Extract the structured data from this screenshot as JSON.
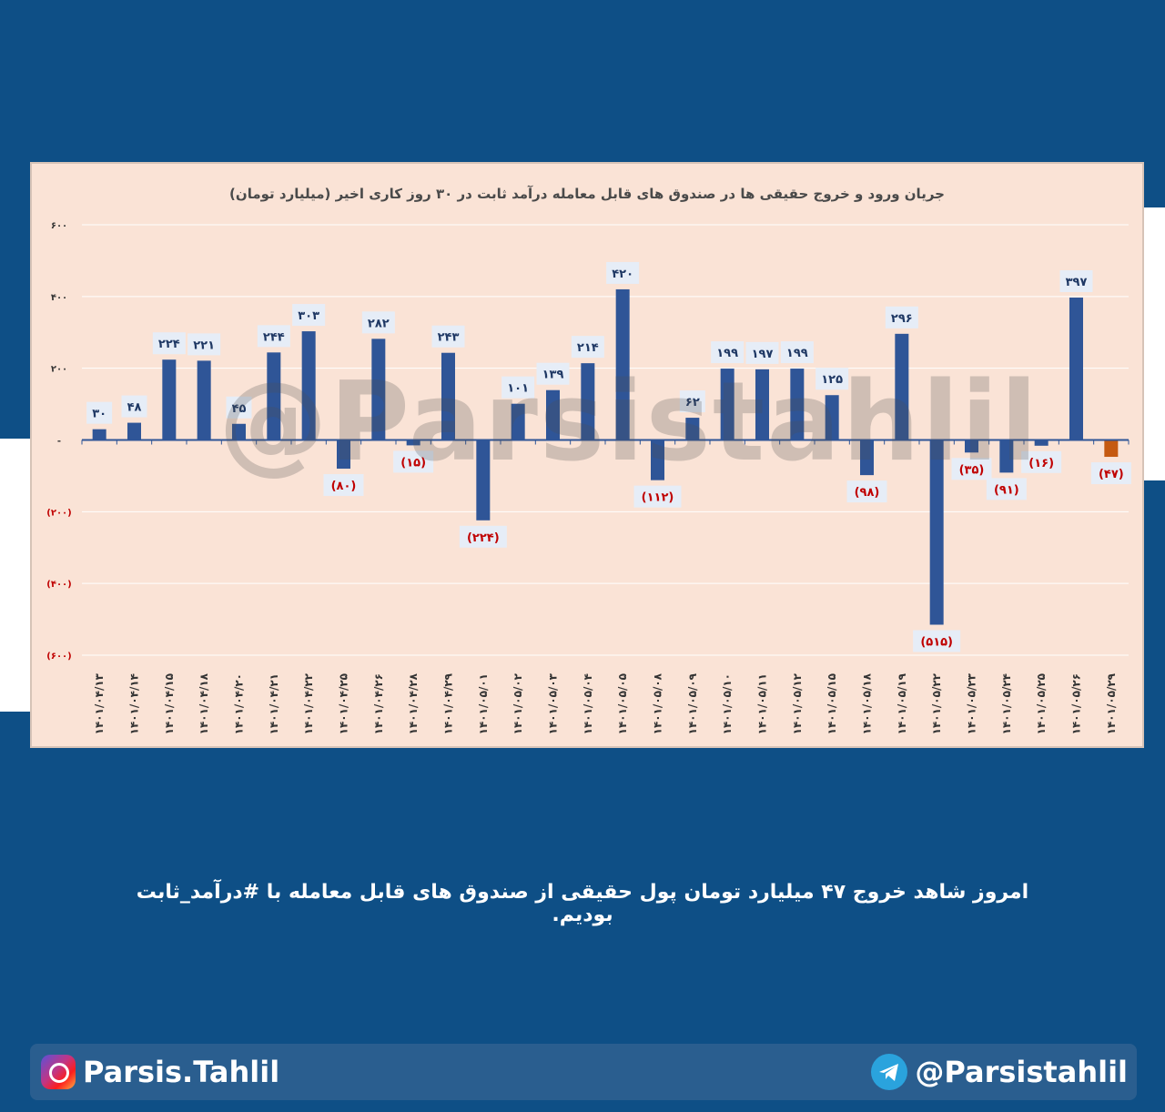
{
  "chart_data": {
    "type": "bar",
    "title": "جریان ورود و خروج حقیقی ها در صندوق های قابل معامله درآمد ثابت در ۳۰ روز کاری اخیر (میلیارد تومان)",
    "xlabel": "",
    "ylabel": "",
    "ylim": [
      -600,
      600
    ],
    "yticks": [
      600,
      400,
      200,
      0,
      -200,
      -400,
      -600
    ],
    "ytick_labels": [
      "۶۰۰",
      "۴۰۰",
      "۲۰۰",
      "-",
      "(۲۰۰)",
      "(۴۰۰)",
      "(۶۰۰)"
    ],
    "grid": true,
    "categories": [
      "۱۴۰۱/۰۴/۱۳",
      "۱۴۰۱/۰۴/۱۴",
      "۱۴۰۱/۰۴/۱۵",
      "۱۴۰۱/۰۴/۱۸",
      "۱۴۰۱/۰۴/۲۰",
      "۱۴۰۱/۰۴/۲۱",
      "۱۴۰۱/۰۴/۲۲",
      "۱۴۰۱/۰۴/۲۵",
      "۱۴۰۱/۰۴/۲۶",
      "۱۴۰۱/۰۴/۲۸",
      "۱۴۰۱/۰۴/۲۹",
      "۱۴۰۱/۰۵/۰۱",
      "۱۴۰۱/۰۵/۰۲",
      "۱۴۰۱/۰۵/۰۳",
      "۱۴۰۱/۰۵/۰۴",
      "۱۴۰۱/۰۵/۰۵",
      "۱۴۰۱/۰۵/۰۸",
      "۱۴۰۱/۰۵/۰۹",
      "۱۴۰۱/۰۵/۱۰",
      "۱۴۰۱/۰۵/۱۱",
      "۱۴۰۱/۰۵/۱۲",
      "۱۴۰۱/۰۵/۱۵",
      "۱۴۰۱/۰۵/۱۸",
      "۱۴۰۱/۰۵/۱۹",
      "۱۴۰۱/۰۵/۲۲",
      "۱۴۰۱/۰۵/۲۳",
      "۱۴۰۱/۰۵/۲۴",
      "۱۴۰۱/۰۵/۲۵",
      "۱۴۰۱/۰۵/۲۶",
      "۱۴۰۱/۰۵/۲۹"
    ],
    "values": [
      30,
      48,
      224,
      221,
      45,
      244,
      303,
      -80,
      282,
      -15,
      243,
      -224,
      101,
      139,
      214,
      420,
      -112,
      62,
      199,
      197,
      199,
      125,
      -98,
      296,
      -515,
      -35,
      -91,
      -16,
      397,
      -47
    ],
    "labels": [
      "۳۰",
      "۴۸",
      "۲۲۴",
      "۲۲۱",
      "۴۵",
      "۲۴۴",
      "۳۰۳",
      "(۸۰)",
      "۲۸۲",
      "(۱۵)",
      "۲۴۳",
      "(۲۲۴)",
      "۱۰۱",
      "۱۳۹",
      "۲۱۴",
      "۴۲۰",
      "(۱۱۲)",
      "۶۲",
      "۱۹۹",
      "۱۹۷",
      "۱۹۹",
      "۱۲۵",
      "(۹۸)",
      "۲۹۶",
      "(۵۱۵)",
      "(۳۵)",
      "(۹۱)",
      "(۱۶)",
      "۳۹۷",
      "(۴۷)"
    ],
    "colors": {
      "bar": "#2f5597",
      "highlight": "#c55a11",
      "negative_label": "#c00000",
      "positive_label": "#1f3864"
    },
    "highlight_index": 29
  },
  "watermark": "@Parsistahlil",
  "caption": "امروز شاهد خروج ۴۷ میلیارد تومان پول حقیقی  از صندوق های قابل معامله با #درآمد_ثابت بودیم.",
  "footer": {
    "instagram": {
      "icon": "instagram-icon",
      "handle": "Parsis.Tahlil"
    },
    "telegram": {
      "icon": "telegram-icon",
      "handle": "@Parsistahlil"
    }
  }
}
